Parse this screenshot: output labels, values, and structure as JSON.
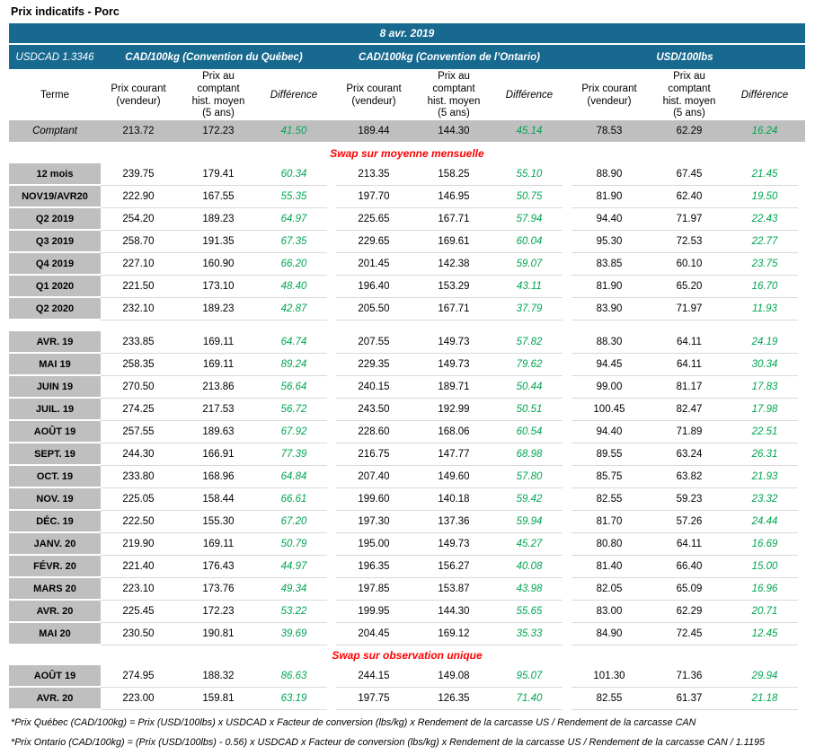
{
  "page_title": "Prix indicatifs - Porc",
  "header": {
    "date": "8 avr. 2019",
    "usdcad_label": "USDCAD 1.3346",
    "groups": [
      "CAD/100kg (Convention du Québec)",
      "CAD/100kg (Convention de l’Ontario)",
      "USD/100lbs"
    ]
  },
  "columns": {
    "terme": "Terme",
    "sub": [
      "Prix courant\n(vendeur)",
      "Prix au\ncomptant\nhist. moyen\n(5 ans)",
      "Différence"
    ]
  },
  "comptant_row": {
    "label": "Comptant",
    "values": [
      "213.72",
      "172.23",
      "41.50",
      "189.44",
      "144.30",
      "45.14",
      "78.53",
      "62.29",
      "16.24"
    ]
  },
  "sections": [
    {
      "title": "Swap sur moyenne mensuelle",
      "blocks": [
        [
          {
            "label": "12 mois",
            "values": [
              "239.75",
              "179.41",
              "60.34",
              "213.35",
              "158.25",
              "55.10",
              "88.90",
              "67.45",
              "21.45"
            ]
          },
          {
            "label": "NOV19/AVR20",
            "values": [
              "222.90",
              "167.55",
              "55.35",
              "197.70",
              "146.95",
              "50.75",
              "81.90",
              "62.40",
              "19.50"
            ]
          },
          {
            "label": "Q2 2019",
            "values": [
              "254.20",
              "189.23",
              "64.97",
              "225.65",
              "167.71",
              "57.94",
              "94.40",
              "71.97",
              "22.43"
            ]
          },
          {
            "label": "Q3 2019",
            "values": [
              "258.70",
              "191.35",
              "67.35",
              "229.65",
              "169.61",
              "60.04",
              "95.30",
              "72.53",
              "22.77"
            ]
          },
          {
            "label": "Q4 2019",
            "values": [
              "227.10",
              "160.90",
              "66.20",
              "201.45",
              "142.38",
              "59.07",
              "83.85",
              "60.10",
              "23.75"
            ]
          },
          {
            "label": "Q1 2020",
            "values": [
              "221.50",
              "173.10",
              "48.40",
              "196.40",
              "153.29",
              "43.11",
              "81.90",
              "65.20",
              "16.70"
            ]
          },
          {
            "label": "Q2 2020",
            "values": [
              "232.10",
              "189.23",
              "42.87",
              "205.50",
              "167.71",
              "37.79",
              "83.90",
              "71.97",
              "11.93"
            ]
          }
        ],
        [
          {
            "label": "AVR. 19",
            "values": [
              "233.85",
              "169.11",
              "64.74",
              "207.55",
              "149.73",
              "57.82",
              "88.30",
              "64.11",
              "24.19"
            ]
          },
          {
            "label": "MAI 19",
            "values": [
              "258.35",
              "169.11",
              "89.24",
              "229.35",
              "149.73",
              "79.62",
              "94.45",
              "64.11",
              "30.34"
            ]
          },
          {
            "label": "JUIN 19",
            "values": [
              "270.50",
              "213.86",
              "56.64",
              "240.15",
              "189.71",
              "50.44",
              "99.00",
              "81.17",
              "17.83"
            ]
          },
          {
            "label": "JUIL. 19",
            "values": [
              "274.25",
              "217.53",
              "56.72",
              "243.50",
              "192.99",
              "50.51",
              "100.45",
              "82.47",
              "17.98"
            ]
          },
          {
            "label": "AOÛT 19",
            "values": [
              "257.55",
              "189.63",
              "67.92",
              "228.60",
              "168.06",
              "60.54",
              "94.40",
              "71.89",
              "22.51"
            ]
          },
          {
            "label": "SEPT. 19",
            "values": [
              "244.30",
              "166.91",
              "77.39",
              "216.75",
              "147.77",
              "68.98",
              "89.55",
              "63.24",
              "26.31"
            ]
          },
          {
            "label": "OCT. 19",
            "values": [
              "233.80",
              "168.96",
              "64.84",
              "207.40",
              "149.60",
              "57.80",
              "85.75",
              "63.82",
              "21.93"
            ]
          },
          {
            "label": "NOV. 19",
            "values": [
              "225.05",
              "158.44",
              "66.61",
              "199.60",
              "140.18",
              "59.42",
              "82.55",
              "59.23",
              "23.32"
            ]
          },
          {
            "label": "DÉC. 19",
            "values": [
              "222.50",
              "155.30",
              "67.20",
              "197.30",
              "137.36",
              "59.94",
              "81.70",
              "57.26",
              "24.44"
            ]
          },
          {
            "label": "JANV. 20",
            "values": [
              "219.90",
              "169.11",
              "50.79",
              "195.00",
              "149.73",
              "45.27",
              "80.80",
              "64.11",
              "16.69"
            ]
          },
          {
            "label": "FÉVR. 20",
            "values": [
              "221.40",
              "176.43",
              "44.97",
              "196.35",
              "156.27",
              "40.08",
              "81.40",
              "66.40",
              "15.00"
            ]
          },
          {
            "label": "MARS 20",
            "values": [
              "223.10",
              "173.76",
              "49.34",
              "197.85",
              "153.87",
              "43.98",
              "82.05",
              "65.09",
              "16.96"
            ]
          },
          {
            "label": "AVR. 20",
            "values": [
              "225.45",
              "172.23",
              "53.22",
              "199.95",
              "144.30",
              "55.65",
              "83.00",
              "62.29",
              "20.71"
            ]
          },
          {
            "label": "MAI 20",
            "values": [
              "230.50",
              "190.81",
              "39.69",
              "204.45",
              "169.12",
              "35.33",
              "84.90",
              "72.45",
              "12.45"
            ]
          }
        ]
      ]
    },
    {
      "title": "Swap sur observation unique",
      "blocks": [
        [
          {
            "label": "AOÛT 19",
            "values": [
              "274.95",
              "188.32",
              "86.63",
              "244.15",
              "149.08",
              "95.07",
              "101.30",
              "71.36",
              "29.94"
            ]
          },
          {
            "label": "AVR. 20",
            "values": [
              "223.00",
              "159.81",
              "63.19",
              "197.75",
              "126.35",
              "71.40",
              "82.55",
              "61.37",
              "21.18"
            ]
          }
        ]
      ]
    }
  ],
  "footnotes": [
    "*Prix Québec (CAD/100kg) = Prix (USD/100lbs) x USDCAD x Facteur de conversion (lbs/kg) x Rendement de la carcasse US / Rendement de la carcasse CAN",
    "*Prix Ontario (CAD/100kg) = (Prix (USD/100lbs) - 0.56) x USDCAD x Facteur de conversion (lbs/kg) x Rendement de la carcasse US / Rendement de la carcasse CAN / 1.1195"
  ],
  "colors": {
    "header_blue": "#17698F",
    "label_gray": "#BFBFBF",
    "difference_green": "#00A551",
    "section_red": "#FF0000"
  }
}
